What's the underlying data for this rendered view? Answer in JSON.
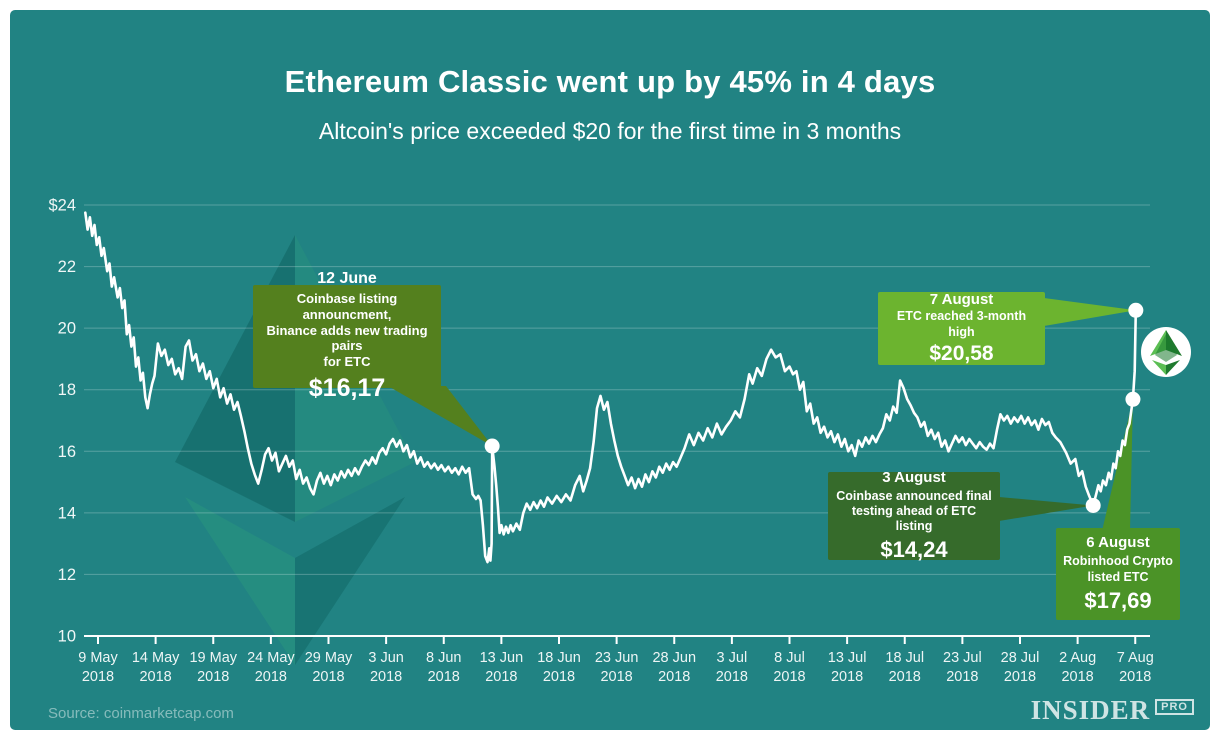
{
  "page": {
    "background": "#ffffff",
    "card_color": "#218383"
  },
  "header": {
    "title": "Ethereum Classic went up by 45% in 4 days",
    "subtitle": "Altcoin's price exceeded $20 for the first time in 3 months"
  },
  "chart_data": {
    "type": "line",
    "title": "Ethereum Classic went up by 45% in 4 days",
    "subtitle": "Altcoin's price exceeded $20 for the first time in 3 months",
    "currency": "USD",
    "ylim": [
      10,
      24
    ],
    "line_color": "#ffffff",
    "grid_color": "rgba(255,255,255,0.25)",
    "axis_color": "#ffffff",
    "label_color": "#f0f7f7",
    "watermark": "ethereum-classic-logo",
    "badge": "ethereum-classic-coin",
    "y_ticks": [
      {
        "label": "$24",
        "value": 24
      },
      {
        "label": "22",
        "value": 22
      },
      {
        "label": "20",
        "value": 20
      },
      {
        "label": "18",
        "value": 18
      },
      {
        "label": "16",
        "value": 16
      },
      {
        "label": "14",
        "value": 14
      },
      {
        "label": "12",
        "value": 12
      },
      {
        "label": "10",
        "value": 10
      }
    ],
    "x_ticks": [
      {
        "label": "9 May",
        "year": "2018",
        "day": 0
      },
      {
        "label": "14 May",
        "year": "2018",
        "day": 5
      },
      {
        "label": "19 May",
        "year": "2018",
        "day": 10
      },
      {
        "label": "24 May",
        "year": "2018",
        "day": 15
      },
      {
        "label": "29 May",
        "year": "2018",
        "day": 20
      },
      {
        "label": "3 Jun",
        "year": "2018",
        "day": 25
      },
      {
        "label": "8 Jun",
        "year": "2018",
        "day": 30
      },
      {
        "label": "13 Jun",
        "year": "2018",
        "day": 35
      },
      {
        "label": "18 Jun",
        "year": "2018",
        "day": 40
      },
      {
        "label": "23 Jun",
        "year": "2018",
        "day": 45
      },
      {
        "label": "28 Jun",
        "year": "2018",
        "day": 50
      },
      {
        "label": "3 Jul",
        "year": "2018",
        "day": 55
      },
      {
        "label": "8 Jul",
        "year": "2018",
        "day": 60
      },
      {
        "label": "13 Jul",
        "year": "2018",
        "day": 65
      },
      {
        "label": "18 Jul",
        "year": "2018",
        "day": 70
      },
      {
        "label": "23 Jul",
        "year": "2018",
        "day": 75
      },
      {
        "label": "28 Jul",
        "year": "2018",
        "day": 80
      },
      {
        "label": "2 Aug",
        "year": "2018",
        "day": 85
      },
      {
        "label": "7 Aug",
        "year": "2018",
        "day": 90
      }
    ],
    "annotations": [
      {
        "id": "jun12",
        "date_label": "12 June",
        "text": "Coinbase listing announcment,\nBinance adds new trading pairs\nfor ETC",
        "price_label": "$16,17",
        "day": 34.2,
        "price": 16.17,
        "box_color": "#54801E"
      },
      {
        "id": "aug7",
        "date_label": "7 August",
        "text": "ETC reached 3-month high",
        "price_label": "$20,58",
        "day": 90.05,
        "price": 20.58,
        "box_color": "#6CB42F"
      },
      {
        "id": "aug3",
        "date_label": "3 August",
        "text": "Coinbase announced final\ntesting ahead of ETC listing",
        "price_label": "$14,24",
        "day": 86.35,
        "price": 14.24,
        "box_color": "#366B2B"
      },
      {
        "id": "aug6",
        "date_label": "6 August",
        "text": "Robinhood Crypto\nlisted ETC",
        "price_label": "$17,69",
        "day": 89.8,
        "price": 17.69,
        "box_color": "#4B9327"
      }
    ],
    "series": [
      [
        -1.1,
        23.75
      ],
      [
        -0.9,
        23.2
      ],
      [
        -0.7,
        23.6
      ],
      [
        -0.5,
        23.0
      ],
      [
        -0.3,
        23.35
      ],
      [
        -0.1,
        22.7
      ],
      [
        0.1,
        22.95
      ],
      [
        0.3,
        22.35
      ],
      [
        0.5,
        22.6
      ],
      [
        0.8,
        21.85
      ],
      [
        1.0,
        22.1
      ],
      [
        1.2,
        21.35
      ],
      [
        1.4,
        21.65
      ],
      [
        1.7,
        21.0
      ],
      [
        1.9,
        21.3
      ],
      [
        2.1,
        20.65
      ],
      [
        2.3,
        20.9
      ],
      [
        2.5,
        19.8
      ],
      [
        2.7,
        20.1
      ],
      [
        2.9,
        19.4
      ],
      [
        3.1,
        19.7
      ],
      [
        3.3,
        18.75
      ],
      [
        3.5,
        19.05
      ],
      [
        3.7,
        18.3
      ],
      [
        3.9,
        18.55
      ],
      [
        4.1,
        17.75
      ],
      [
        4.3,
        17.4
      ],
      [
        4.5,
        17.85
      ],
      [
        4.7,
        18.2
      ],
      [
        4.9,
        18.45
      ],
      [
        5.2,
        19.5
      ],
      [
        5.5,
        19.1
      ],
      [
        5.8,
        19.3
      ],
      [
        6.1,
        18.8
      ],
      [
        6.4,
        19.0
      ],
      [
        6.7,
        18.5
      ],
      [
        7.0,
        18.7
      ],
      [
        7.3,
        18.35
      ],
      [
        7.6,
        19.4
      ],
      [
        7.9,
        19.6
      ],
      [
        8.2,
        18.95
      ],
      [
        8.5,
        19.15
      ],
      [
        8.8,
        18.6
      ],
      [
        9.1,
        18.85
      ],
      [
        9.4,
        18.35
      ],
      [
        9.7,
        18.6
      ],
      [
        10.0,
        18.05
      ],
      [
        10.3,
        18.35
      ],
      [
        10.6,
        17.75
      ],
      [
        10.9,
        18.05
      ],
      [
        11.2,
        17.55
      ],
      [
        11.5,
        17.85
      ],
      [
        11.8,
        17.35
      ],
      [
        12.1,
        17.6
      ],
      [
        12.4,
        17.15
      ],
      [
        12.7,
        16.65
      ],
      [
        13.0,
        16.1
      ],
      [
        13.3,
        15.6
      ],
      [
        13.6,
        15.25
      ],
      [
        13.9,
        14.95
      ],
      [
        14.2,
        15.4
      ],
      [
        14.5,
        15.9
      ],
      [
        14.8,
        16.1
      ],
      [
        15.1,
        15.7
      ],
      [
        15.4,
        15.95
      ],
      [
        15.7,
        15.35
      ],
      [
        16.0,
        15.6
      ],
      [
        16.3,
        15.85
      ],
      [
        16.6,
        15.5
      ],
      [
        16.9,
        15.7
      ],
      [
        17.2,
        15.1
      ],
      [
        17.5,
        15.4
      ],
      [
        17.8,
        14.95
      ],
      [
        18.1,
        15.15
      ],
      [
        18.4,
        14.8
      ],
      [
        18.7,
        14.6
      ],
      [
        19.0,
        15.05
      ],
      [
        19.3,
        15.3
      ],
      [
        19.6,
        14.95
      ],
      [
        19.9,
        15.2
      ],
      [
        20.2,
        14.9
      ],
      [
        20.5,
        15.25
      ],
      [
        20.8,
        15.05
      ],
      [
        21.1,
        15.35
      ],
      [
        21.4,
        15.15
      ],
      [
        21.7,
        15.4
      ],
      [
        22.0,
        15.2
      ],
      [
        22.3,
        15.45
      ],
      [
        22.6,
        15.25
      ],
      [
        22.9,
        15.5
      ],
      [
        23.2,
        15.7
      ],
      [
        23.5,
        15.55
      ],
      [
        23.8,
        15.8
      ],
      [
        24.1,
        15.6
      ],
      [
        24.4,
        15.95
      ],
      [
        24.7,
        16.1
      ],
      [
        25.0,
        15.9
      ],
      [
        25.3,
        16.25
      ],
      [
        25.6,
        16.4
      ],
      [
        25.9,
        16.15
      ],
      [
        26.2,
        16.35
      ],
      [
        26.5,
        16.0
      ],
      [
        26.8,
        16.2
      ],
      [
        27.1,
        15.8
      ],
      [
        27.4,
        16.0
      ],
      [
        27.7,
        15.6
      ],
      [
        28.0,
        15.8
      ],
      [
        28.3,
        15.5
      ],
      [
        28.6,
        15.65
      ],
      [
        28.9,
        15.45
      ],
      [
        29.2,
        15.6
      ],
      [
        29.5,
        15.4
      ],
      [
        29.8,
        15.55
      ],
      [
        30.1,
        15.35
      ],
      [
        30.4,
        15.5
      ],
      [
        30.7,
        15.3
      ],
      [
        31.0,
        15.45
      ],
      [
        31.3,
        15.25
      ],
      [
        31.6,
        15.5
      ],
      [
        31.9,
        15.3
      ],
      [
        32.2,
        15.45
      ],
      [
        32.5,
        14.6
      ],
      [
        32.8,
        14.45
      ],
      [
        33.0,
        14.55
      ],
      [
        33.2,
        14.4
      ],
      [
        33.4,
        13.6
      ],
      [
        33.6,
        12.6
      ],
      [
        33.8,
        12.4
      ],
      [
        33.95,
        12.85
      ],
      [
        34.05,
        12.45
      ],
      [
        34.15,
        13.0
      ],
      [
        34.2,
        16.17
      ],
      [
        34.4,
        15.5
      ],
      [
        34.55,
        14.9
      ],
      [
        34.7,
        14.2
      ],
      [
        34.85,
        13.35
      ],
      [
        35.0,
        13.6
      ],
      [
        35.2,
        13.3
      ],
      [
        35.4,
        13.55
      ],
      [
        35.6,
        13.35
      ],
      [
        35.8,
        13.6
      ],
      [
        36.0,
        13.4
      ],
      [
        36.3,
        13.65
      ],
      [
        36.6,
        13.45
      ],
      [
        36.9,
        14.0
      ],
      [
        37.2,
        14.3
      ],
      [
        37.5,
        14.1
      ],
      [
        37.8,
        14.35
      ],
      [
        38.1,
        14.15
      ],
      [
        38.4,
        14.4
      ],
      [
        38.7,
        14.2
      ],
      [
        39.0,
        14.5
      ],
      [
        39.4,
        14.3
      ],
      [
        39.8,
        14.55
      ],
      [
        40.2,
        14.35
      ],
      [
        40.6,
        14.6
      ],
      [
        41.0,
        14.4
      ],
      [
        41.4,
        14.9
      ],
      [
        41.8,
        15.2
      ],
      [
        42.1,
        14.7
      ],
      [
        42.4,
        15.05
      ],
      [
        42.7,
        15.45
      ],
      [
        43.0,
        16.3
      ],
      [
        43.3,
        17.4
      ],
      [
        43.6,
        17.8
      ],
      [
        43.9,
        17.35
      ],
      [
        44.2,
        17.6
      ],
      [
        44.5,
        16.9
      ],
      [
        44.8,
        16.35
      ],
      [
        45.1,
        15.85
      ],
      [
        45.4,
        15.5
      ],
      [
        45.7,
        15.2
      ],
      [
        46.0,
        14.9
      ],
      [
        46.3,
        15.15
      ],
      [
        46.6,
        14.8
      ],
      [
        46.9,
        15.1
      ],
      [
        47.2,
        14.85
      ],
      [
        47.5,
        15.25
      ],
      [
        47.8,
        15.0
      ],
      [
        48.1,
        15.35
      ],
      [
        48.4,
        15.15
      ],
      [
        48.7,
        15.5
      ],
      [
        49.0,
        15.3
      ],
      [
        49.3,
        15.6
      ],
      [
        49.6,
        15.4
      ],
      [
        49.9,
        15.65
      ],
      [
        50.2,
        15.5
      ],
      [
        50.5,
        15.75
      ],
      [
        50.9,
        16.1
      ],
      [
        51.3,
        16.55
      ],
      [
        51.7,
        16.2
      ],
      [
        52.1,
        16.6
      ],
      [
        52.5,
        16.35
      ],
      [
        52.9,
        16.75
      ],
      [
        53.3,
        16.45
      ],
      [
        53.7,
        16.9
      ],
      [
        54.1,
        16.55
      ],
      [
        54.5,
        16.8
      ],
      [
        54.9,
        17.0
      ],
      [
        55.3,
        17.3
      ],
      [
        55.7,
        17.1
      ],
      [
        56.1,
        17.7
      ],
      [
        56.5,
        18.5
      ],
      [
        56.8,
        18.2
      ],
      [
        57.2,
        18.7
      ],
      [
        57.6,
        18.45
      ],
      [
        58.0,
        19.0
      ],
      [
        58.4,
        19.3
      ],
      [
        58.8,
        19.05
      ],
      [
        59.2,
        19.15
      ],
      [
        59.6,
        18.6
      ],
      [
        60.0,
        18.75
      ],
      [
        60.3,
        18.5
      ],
      [
        60.6,
        18.6
      ],
      [
        60.9,
        18.0
      ],
      [
        61.2,
        18.25
      ],
      [
        61.5,
        17.3
      ],
      [
        61.8,
        17.55
      ],
      [
        62.1,
        16.9
      ],
      [
        62.4,
        17.1
      ],
      [
        62.7,
        16.6
      ],
      [
        63.0,
        16.8
      ],
      [
        63.3,
        16.45
      ],
      [
        63.6,
        16.65
      ],
      [
        63.9,
        16.3
      ],
      [
        64.2,
        16.55
      ],
      [
        64.5,
        16.15
      ],
      [
        64.8,
        16.4
      ],
      [
        65.1,
        16.0
      ],
      [
        65.4,
        16.2
      ],
      [
        65.7,
        15.85
      ],
      [
        66.0,
        16.35
      ],
      [
        66.3,
        16.15
      ],
      [
        66.6,
        16.45
      ],
      [
        66.9,
        16.25
      ],
      [
        67.2,
        16.5
      ],
      [
        67.5,
        16.3
      ],
      [
        67.8,
        16.55
      ],
      [
        68.1,
        16.75
      ],
      [
        68.4,
        17.2
      ],
      [
        68.7,
        17.0
      ],
      [
        69.0,
        17.45
      ],
      [
        69.3,
        17.25
      ],
      [
        69.6,
        18.3
      ],
      [
        69.9,
        18.05
      ],
      [
        70.2,
        17.7
      ],
      [
        70.5,
        17.5
      ],
      [
        70.8,
        17.25
      ],
      [
        71.1,
        17.1
      ],
      [
        71.4,
        16.8
      ],
      [
        71.7,
        16.95
      ],
      [
        72.0,
        16.5
      ],
      [
        72.3,
        16.7
      ],
      [
        72.6,
        16.4
      ],
      [
        72.9,
        16.6
      ],
      [
        73.2,
        16.15
      ],
      [
        73.5,
        16.35
      ],
      [
        73.8,
        16.0
      ],
      [
        74.1,
        16.25
      ],
      [
        74.4,
        16.5
      ],
      [
        74.7,
        16.3
      ],
      [
        75.0,
        16.45
      ],
      [
        75.3,
        16.2
      ],
      [
        75.6,
        16.4
      ],
      [
        75.9,
        16.25
      ],
      [
        76.2,
        16.1
      ],
      [
        76.5,
        16.3
      ],
      [
        76.8,
        16.15
      ],
      [
        77.1,
        16.05
      ],
      [
        77.4,
        16.25
      ],
      [
        77.7,
        16.1
      ],
      [
        78.0,
        16.7
      ],
      [
        78.3,
        17.2
      ],
      [
        78.6,
        17.0
      ],
      [
        78.9,
        17.15
      ],
      [
        79.2,
        16.9
      ],
      [
        79.5,
        17.1
      ],
      [
        79.8,
        16.95
      ],
      [
        80.1,
        17.15
      ],
      [
        80.4,
        16.9
      ],
      [
        80.7,
        17.1
      ],
      [
        81.0,
        16.85
      ],
      [
        81.3,
        17.0
      ],
      [
        81.6,
        16.7
      ],
      [
        81.9,
        17.05
      ],
      [
        82.2,
        16.85
      ],
      [
        82.5,
        16.95
      ],
      [
        82.8,
        16.6
      ],
      [
        83.1,
        16.45
      ],
      [
        83.5,
        16.3
      ],
      [
        84.0,
        15.95
      ],
      [
        84.4,
        15.6
      ],
      [
        84.8,
        15.75
      ],
      [
        85.1,
        15.2
      ],
      [
        85.4,
        15.35
      ],
      [
        85.7,
        14.85
      ],
      [
        86.0,
        14.55
      ],
      [
        86.35,
        14.24
      ],
      [
        86.6,
        14.6
      ],
      [
        86.8,
        14.9
      ],
      [
        87.0,
        14.7
      ],
      [
        87.2,
        15.05
      ],
      [
        87.45,
        14.9
      ],
      [
        87.7,
        15.3
      ],
      [
        87.9,
        15.1
      ],
      [
        88.1,
        15.6
      ],
      [
        88.3,
        15.45
      ],
      [
        88.5,
        16.0
      ],
      [
        88.7,
        15.85
      ],
      [
        88.9,
        16.35
      ],
      [
        89.1,
        16.2
      ],
      [
        89.3,
        16.7
      ],
      [
        89.5,
        16.9
      ],
      [
        89.65,
        17.3
      ],
      [
        89.8,
        17.69
      ],
      [
        89.95,
        18.6
      ],
      [
        90.05,
        20.58
      ]
    ]
  },
  "footer": {
    "source": "Source: coinmarketcap.com",
    "brand": "INSIDER",
    "brand_suffix": "PRO"
  }
}
